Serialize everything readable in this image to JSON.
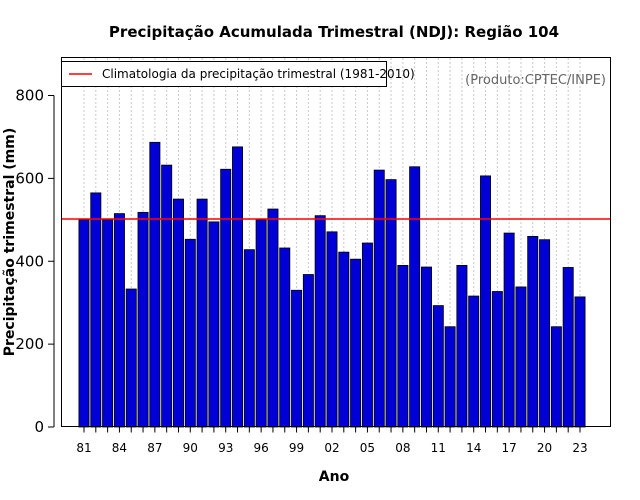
{
  "chart_data": {
    "type": "bar",
    "title": "Precipitação Acumulada Trimestral (NDJ): Região 104",
    "xlabel": "Ano",
    "ylabel": "Precipitação trimestral (mm)",
    "ylim": [
      0,
      890
    ],
    "yticks": [
      0,
      200,
      400,
      600,
      800
    ],
    "ytick_labels": [
      "0",
      "200",
      "400",
      "600",
      "800"
    ],
    "grid": "vertical dotted lines at each bar",
    "legend_position": "top-left",
    "categories": [
      "81",
      "82",
      "83",
      "84",
      "85",
      "86",
      "87",
      "88",
      "89",
      "90",
      "91",
      "92",
      "93",
      "94",
      "95",
      "96",
      "97",
      "98",
      "99",
      "00",
      "01",
      "02",
      "03",
      "04",
      "05",
      "06",
      "07",
      "08",
      "09",
      "10",
      "11",
      "12",
      "13",
      "14",
      "15",
      "16",
      "17",
      "18",
      "19",
      "20",
      "21",
      "22",
      "23"
    ],
    "xtick_labels": [
      "81",
      "84",
      "87",
      "90",
      "93",
      "96",
      "99",
      "02",
      "05",
      "08",
      "11",
      "14",
      "17",
      "20",
      "23"
    ],
    "values": [
      500,
      565,
      500,
      515,
      333,
      518,
      687,
      632,
      550,
      453,
      550,
      495,
      622,
      676,
      428,
      500,
      526,
      432,
      330,
      368,
      510,
      471,
      422,
      405,
      444,
      620,
      597,
      390,
      628,
      386,
      293,
      242,
      390,
      316,
      606,
      327,
      468,
      338,
      460,
      452,
      242,
      385,
      314
    ],
    "bar_color": "#0000d6",
    "bar_edge_color": "#000000",
    "reference_line": {
      "value": 502,
      "color": "#ff0000",
      "label": "Climatologia da precipitação trimestral (1981-2010)"
    },
    "source_note": "(Produto:CPTEC/INPE)"
  }
}
